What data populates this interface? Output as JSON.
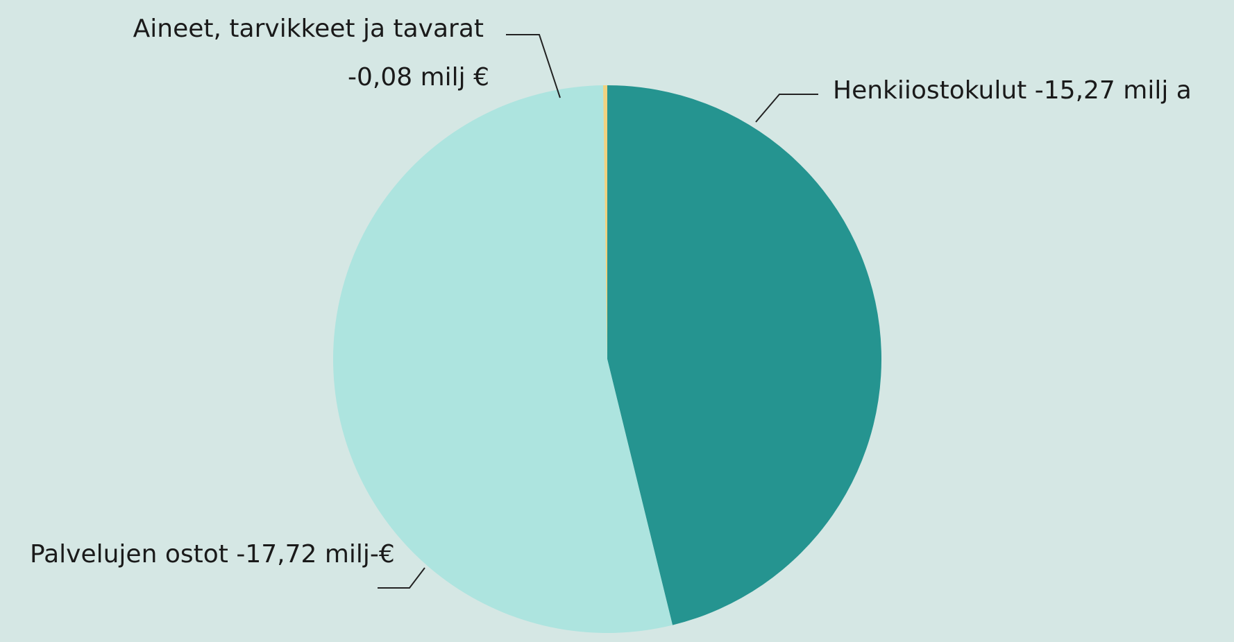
{
  "chart_data": {
    "type": "pie",
    "categories": [
      "Henkiiostokulut",
      "Palvelujen ostot",
      "Aineet, tarvikkeet ja tavarat"
    ],
    "values": [
      -15.27,
      -17.72,
      -0.08
    ],
    "value_labels": [
      "-15,27 milj a",
      "-17,72 milj-€",
      "-0,08 milj €"
    ],
    "colors": [
      "#259490",
      "#ade4df",
      "#f0d280"
    ]
  }
}
